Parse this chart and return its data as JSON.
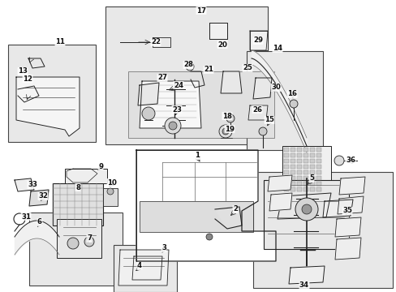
{
  "bg": "#ffffff",
  "box_fill": "#e8e8e8",
  "box_edge": "#444444",
  "line_col": "#222222",
  "boxes": {
    "b11": [
      10,
      55,
      108,
      120
    ],
    "b17": [
      130,
      8,
      200,
      170
    ],
    "b14": [
      304,
      63,
      94,
      122
    ],
    "b67": [
      36,
      262,
      115,
      90
    ],
    "b34": [
      312,
      212,
      172,
      142
    ],
    "b34l": [
      312,
      212,
      172,
      142
    ]
  },
  "labels": [
    [
      248,
      13,
      "17"
    ],
    [
      74,
      52,
      "11"
    ],
    [
      342,
      60,
      "14"
    ],
    [
      375,
      352,
      "34"
    ],
    [
      243,
      192,
      "1"
    ],
    [
      290,
      258,
      "2"
    ],
    [
      202,
      306,
      "3"
    ],
    [
      172,
      328,
      "4"
    ],
    [
      384,
      220,
      "5"
    ],
    [
      49,
      274,
      "6"
    ],
    [
      110,
      294,
      "7"
    ],
    [
      96,
      231,
      "8"
    ],
    [
      124,
      205,
      "9"
    ],
    [
      138,
      225,
      "10"
    ],
    [
      34,
      97,
      "12"
    ],
    [
      28,
      88,
      "13"
    ],
    [
      332,
      148,
      "15"
    ],
    [
      360,
      116,
      "16"
    ],
    [
      280,
      143,
      "18"
    ],
    [
      283,
      159,
      "19"
    ],
    [
      274,
      55,
      "20"
    ],
    [
      257,
      86,
      "21"
    ],
    [
      192,
      52,
      "22"
    ],
    [
      218,
      135,
      "23"
    ],
    [
      220,
      105,
      "24"
    ],
    [
      305,
      84,
      "25"
    ],
    [
      317,
      135,
      "26"
    ],
    [
      200,
      96,
      "27"
    ],
    [
      232,
      80,
      "28"
    ],
    [
      318,
      50,
      "29"
    ],
    [
      340,
      108,
      "30"
    ],
    [
      32,
      267,
      "31"
    ],
    [
      53,
      242,
      "32"
    ],
    [
      40,
      228,
      "33"
    ],
    [
      428,
      260,
      "35"
    ],
    [
      432,
      197,
      "36"
    ]
  ]
}
